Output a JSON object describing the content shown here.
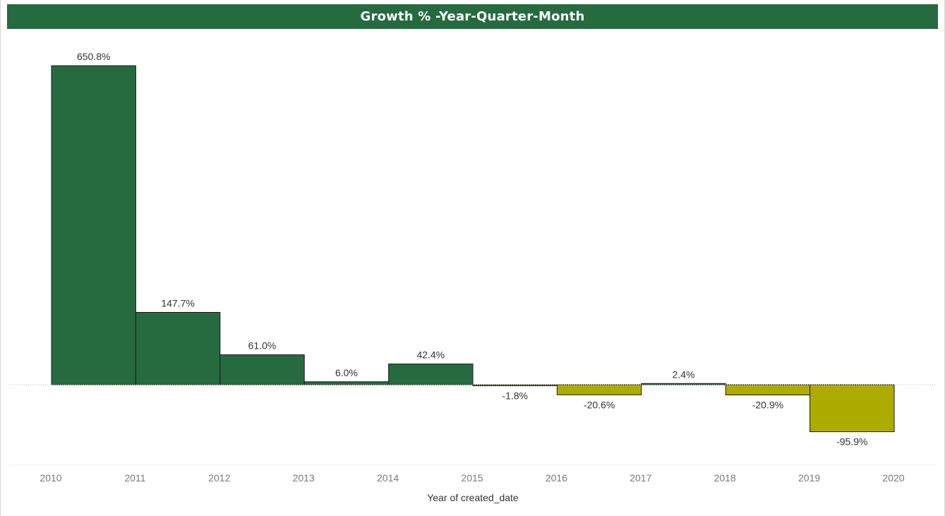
{
  "colors": {
    "title_bg": "#256b3f",
    "title_text": "#ffffff",
    "positive": "#256b3f",
    "negative": "#aeab00",
    "bar_outline": "#1a1a1a",
    "tick_text": "#7a7a7a",
    "label_text": "#333333",
    "zero_line": "#bdbdbd",
    "axis_line": "#ececec"
  },
  "chart_data": {
    "type": "bar",
    "title": "Growth % -Year-Quarter-Month",
    "xlabel": "Year of created_date",
    "ylabel": "",
    "x_ticks": [
      "2010",
      "2011",
      "2012",
      "2013",
      "2014",
      "2015",
      "2016",
      "2017",
      "2018",
      "2019",
      "2020"
    ],
    "categories": [
      "2010",
      "2011",
      "2012",
      "2013",
      "2014",
      "2015",
      "2016",
      "2017",
      "2018",
      "2019"
    ],
    "values": [
      650.8,
      147.7,
      61.0,
      6.0,
      42.4,
      -1.8,
      -20.6,
      2.4,
      -20.9,
      -95.9
    ],
    "value_labels": [
      "650.8%",
      "147.7%",
      "61.0%",
      "6.0%",
      "42.4%",
      "-1.8%",
      "-20.6%",
      "2.4%",
      "-20.9%",
      "-95.9%"
    ],
    "ylim": [
      -130,
      720
    ],
    "grid": false,
    "legend": "none"
  }
}
